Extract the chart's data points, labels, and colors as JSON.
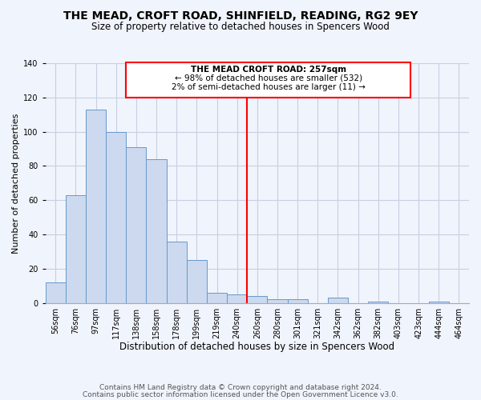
{
  "title": "THE MEAD, CROFT ROAD, SHINFIELD, READING, RG2 9EY",
  "subtitle": "Size of property relative to detached houses in Spencers Wood",
  "xlabel": "Distribution of detached houses by size in Spencers Wood",
  "ylabel": "Number of detached properties",
  "bar_labels": [
    "56sqm",
    "76sqm",
    "97sqm",
    "117sqm",
    "138sqm",
    "158sqm",
    "178sqm",
    "199sqm",
    "219sqm",
    "240sqm",
    "260sqm",
    "280sqm",
    "301sqm",
    "321sqm",
    "342sqm",
    "362sqm",
    "382sqm",
    "403sqm",
    "423sqm",
    "444sqm",
    "464sqm"
  ],
  "bar_values": [
    12,
    63,
    113,
    100,
    91,
    84,
    36,
    25,
    6,
    5,
    4,
    2,
    2,
    0,
    3,
    0,
    1,
    0,
    0,
    1,
    0
  ],
  "bar_color": "#ccd9ee",
  "bar_edge_color": "#6699cc",
  "marker_line_color": "red",
  "annotation_line1": "THE MEAD CROFT ROAD: 257sqm",
  "annotation_line2": "← 98% of detached houses are smaller (532)",
  "annotation_line3": "2% of semi-detached houses are larger (11) →",
  "annotation_box_edge": "red",
  "ylim": [
    0,
    140
  ],
  "yticks": [
    0,
    20,
    40,
    60,
    80,
    100,
    120,
    140
  ],
  "footnote1": "Contains HM Land Registry data © Crown copyright and database right 2024.",
  "footnote2": "Contains public sector information licensed under the Open Government Licence v3.0.",
  "bg_color": "#f0f4fc",
  "grid_color": "#c8cfe0",
  "title_fontsize": 10,
  "subtitle_fontsize": 8.5,
  "xlabel_fontsize": 8.5,
  "ylabel_fontsize": 8,
  "tick_fontsize": 7,
  "footnote_fontsize": 6.5
}
